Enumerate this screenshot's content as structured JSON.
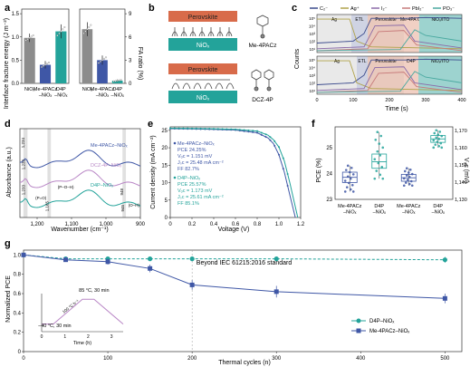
{
  "panels": {
    "a": {
      "label": "a",
      "chart_data": {
        "type": "bar",
        "ylabel_left": "Interface fracture energy (J m⁻²)",
        "ylabel_right": "FA ratio (%)",
        "yticks_left": [
          "0.0",
          "0.5",
          "1.0",
          "1.5"
        ],
        "yticks_right": [
          "0",
          "3",
          "6",
          "9"
        ],
        "ylim_left": [
          0,
          1.6
        ],
        "ylim_right": [
          0,
          9.6
        ],
        "categories": [
          "NiOₓ",
          "Me-4PACz\n–NiOₓ",
          "D4P\n–NiOₓ"
        ],
        "colors": [
          "#8c8c8c",
          "#3f57a6",
          "#23a39a"
        ],
        "subplots": [
          {
            "axis": "left",
            "values": [
              0.98,
              0.4,
              1.12
            ],
            "errors": [
              0.09,
              0.08,
              0.15
            ]
          },
          {
            "axis": "right",
            "values": [
              7.0,
              3.0,
              0.35
            ],
            "errors": [
              0.9,
              0.6,
              0.15
            ]
          }
        ]
      }
    },
    "b": {
      "label": "b",
      "layer_perovskite": "Perovskite",
      "layer_nio": "NiOₓ",
      "molecule_top": "Me-4PACz",
      "molecule_bottom": "DCZ-4P"
    },
    "c": {
      "label": "c",
      "legend": [
        "C₂⁻",
        "Ag⁺",
        "I₂⁻",
        "PbI₂⁻",
        "PO₃⁻"
      ],
      "legend_colors": [
        "#3b4a8c",
        "#b0a24a",
        "#8a6aa8",
        "#c77a7a",
        "#4aa9a0"
      ],
      "ylabel": "Counts",
      "xlabel": "Time (s)",
      "xticks": [
        "0",
        "100",
        "200",
        "300",
        "400"
      ],
      "yticks": [
        "10¹",
        "10²",
        "10³",
        "10⁴",
        "10⁵"
      ],
      "regions_top": [
        "Ag",
        "ETL",
        "Perovskite",
        "Me-4PA Cz",
        "NiOₓ/ITO"
      ],
      "regions_bottom": [
        "Ag",
        "ETL",
        "Perovskite",
        "D4P",
        "NiOₓ/ITO"
      ]
    },
    "d": {
      "label": "d",
      "chart_data": {
        "type": "line",
        "xlabel": "Wavenumber (cm⁻¹)",
        "ylabel": "Absorbance (a.u.)",
        "xticks": [
          "1,200",
          "1,100",
          "1,000",
          "900"
        ],
        "xlim": [
          1250,
          900
        ],
        "series": [
          {
            "name": "Me-4PACz–NiOₓ",
            "color": "#3f57a6"
          },
          {
            "name": "DCZ-4P–NiOₓ",
            "color": "#b987c6"
          },
          {
            "name": "D4P–NiOₓ",
            "color": "#23a39a"
          }
        ],
        "annotations": [
          "1,234",
          "1,233",
          "1,233",
          "1,165",
          "948",
          "945",
          "(P=O)",
          "(P–O–H)",
          "(O–H)"
        ]
      }
    },
    "e": {
      "label": "e",
      "chart_data": {
        "type": "line",
        "xlabel": "Voltage (V)",
        "ylabel": "Current density (mA cm⁻²)",
        "xticks": [
          "0",
          "0.2",
          "0.4",
          "0.6",
          "0.8",
          "1.0",
          "1.2"
        ],
        "yticks": [
          "0",
          "5",
          "10",
          "15",
          "20",
          "25"
        ],
        "xlim": [
          0,
          1.2
        ],
        "ylim": [
          0,
          26
        ],
        "series": [
          {
            "name": "Me-4PACz–NiOₓ",
            "color": "#3f57a6",
            "x": [
              0,
              0.2,
              0.4,
              0.6,
              0.8,
              0.9,
              0.95,
              1.0,
              1.05,
              1.1,
              1.151
            ],
            "y": [
              25.48,
              25.4,
              25.3,
              25.1,
              24.3,
              22.8,
              21.2,
              18.0,
              13.0,
              6.5,
              0
            ]
          },
          {
            "name": "D4P–NiOₓ",
            "color": "#23a39a",
            "x": [
              0,
              0.2,
              0.4,
              0.6,
              0.8,
              0.9,
              0.95,
              1.0,
              1.05,
              1.1,
              1.173
            ],
            "y": [
              25.61,
              25.55,
              25.45,
              25.3,
              24.8,
              23.6,
              22.3,
              20.2,
              16.2,
              10.0,
              0
            ]
          }
        ],
        "stats": [
          [
            "Me-4PACz–NiOₓ",
            "PCE 24.25%",
            "Vₒc = 1.151 mV",
            "Jₛc = 25.48 mA cm⁻²",
            "FF 82.7%"
          ],
          [
            "D4P–NiOₓ",
            "PCE 25.57%",
            "Vₒc = 1.173 mV",
            "Jₛc = 25.61 mA cm⁻²",
            "FF 85.1%"
          ]
        ]
      }
    },
    "f": {
      "label": "f",
      "chart_data": {
        "type": "box",
        "ylabel_left": "PCE (%)",
        "ylabel_right": "Vₒc (mV)",
        "yticks_left": [
          "23",
          "24",
          "25"
        ],
        "yticks_right": [
          "1,130",
          "1,140",
          "1,150",
          "1,160",
          "1,170"
        ],
        "ylim_left": [
          23,
          25.8
        ],
        "ylim_right": [
          1130,
          1172
        ],
        "categories": [
          "Me-4PACz\n–NiOₓ",
          "D4P\n–NiOₓ",
          "Me-4PACz\n–NiOₓ",
          "D4P\n–NiOₓ"
        ],
        "boxes": [
          {
            "axis": "left",
            "color": "#3f57a6",
            "q1": 23.65,
            "median": 23.85,
            "q3": 24.05,
            "min": 23.3,
            "max": 24.3
          },
          {
            "axis": "left",
            "color": "#23a39a",
            "q1": 24.2,
            "median": 24.45,
            "q3": 24.75,
            "min": 23.8,
            "max": 25.6
          },
          {
            "axis": "right",
            "color": "#3f57a6",
            "q1": 1140.5,
            "median": 1142.5,
            "q3": 1144.5,
            "min": 1138,
            "max": 1148
          },
          {
            "axis": "right",
            "color": "#23a39a",
            "q1": 1163,
            "median": 1165,
            "q3": 1167,
            "min": 1160,
            "max": 1170
          }
        ]
      }
    },
    "g": {
      "label": "g",
      "chart_data": {
        "type": "line",
        "xlabel": "Thermal cycles (n)",
        "ylabel": "Normalized PCE",
        "xticks": [
          "0",
          "100",
          "200",
          "300",
          "400",
          "500"
        ],
        "yticks": [
          "0",
          "0.2",
          "0.4",
          "0.6",
          "0.8",
          "1.0"
        ],
        "xlim": [
          0,
          520
        ],
        "ylim": [
          0,
          1.05
        ],
        "series": [
          {
            "name": "D4P–NiOₓ",
            "color": "#23a39a",
            "x": [
              0,
              50,
              100,
              150,
              200,
              300,
              500
            ],
            "y": [
              1.0,
              0.96,
              0.96,
              0.96,
              0.96,
              0.96,
              0.95
            ],
            "err": [
              0.0,
              0.02,
              0.02,
              0.02,
              0.02,
              0.02,
              0.03
            ]
          },
          {
            "name": "Me-4PACz–NiOₓ",
            "color": "#3f57a6",
            "x": [
              0,
              50,
              100,
              150,
              200,
              300,
              500
            ],
            "y": [
              1.0,
              0.95,
              0.93,
              0.86,
              0.69,
              0.62,
              0.55
            ],
            "err": [
              0.0,
              0.02,
              0.03,
              0.04,
              0.05,
              0.06,
              0.05
            ]
          }
        ],
        "annotation": "Beyond IEC 61215:2016 standard",
        "inset": {
          "xlabel": "Time (h)",
          "xticks": [
            "0",
            "1",
            "2",
            "3"
          ],
          "hot": "85 °C, 30 min",
          "cold": "−40 °C, 30 min",
          "ramp": "100 °C h⁻¹"
        }
      }
    }
  }
}
